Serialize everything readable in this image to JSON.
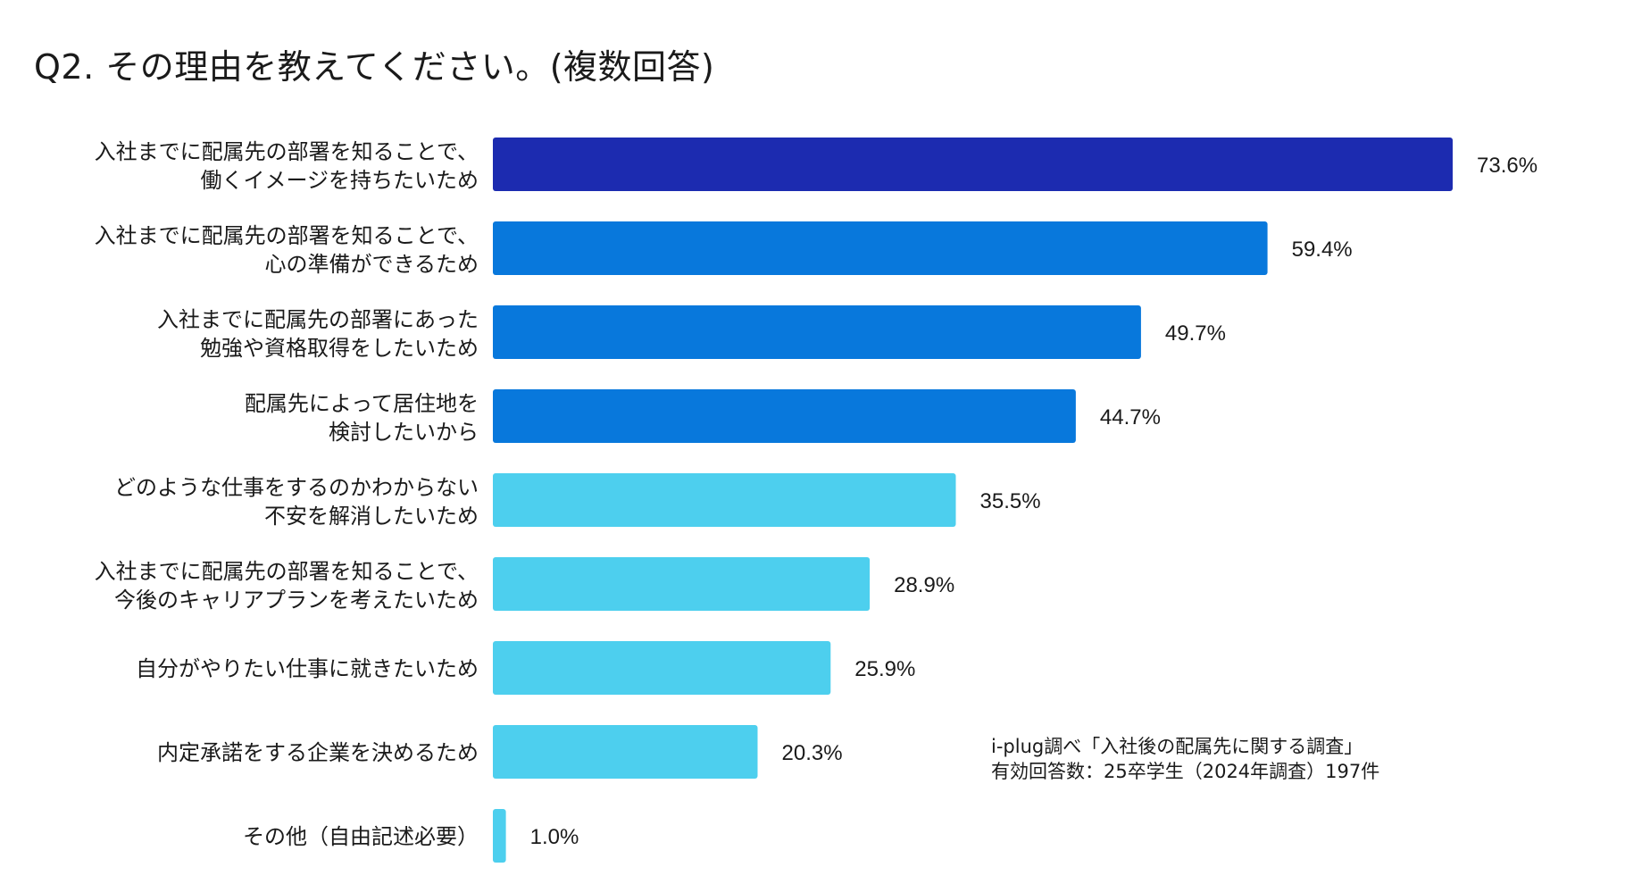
{
  "title": "Q2. その理由を教えてください。(複数回答)",
  "source": {
    "line1": "i-plug調べ「入社後の配属先に関する調査」",
    "line2": "有効回答数：25卒学生（2024年調査）197件"
  },
  "chart_data": {
    "type": "bar",
    "orientation": "horizontal",
    "title": "Q2. その理由を教えてください。(複数回答)",
    "xlim": [
      0,
      80
    ],
    "value_suffix": "%",
    "categories": [
      [
        "入社までに配属先の部署を知ることで、",
        "働くイメージを持ちたいため"
      ],
      [
        "入社までに配属先の部署を知ることで、",
        "心の準備ができるため"
      ],
      [
        "入社までに配属先の部署にあった",
        "勉強や資格取得をしたいため"
      ],
      [
        "配属先によって居住地を",
        "検討したいから"
      ],
      [
        "どのような仕事をするのかわからない",
        "不安を解消したいため"
      ],
      [
        "入社までに配属先の部署を知ることで、",
        "今後のキャリアプランを考えたいため"
      ],
      [
        "自分がやりたい仕事に就きたいため"
      ],
      [
        "内定承諾をする企業を決めるため"
      ],
      [
        "その他（自由記述必要）"
      ]
    ],
    "values": [
      73.6,
      59.4,
      49.7,
      44.7,
      35.5,
      28.9,
      25.9,
      20.3,
      1.0
    ],
    "value_labels": [
      "73.6%",
      "59.4%",
      "49.7%",
      "44.7%",
      "35.5%",
      "28.9%",
      "25.9%",
      "20.3%",
      "1.0%"
    ],
    "colors": [
      "#1c2bb0",
      "#0878dc",
      "#0878dc",
      "#0878dc",
      "#4dcfee",
      "#4dcfee",
      "#4dcfee",
      "#4dcfee",
      "#4dcfee"
    ]
  }
}
